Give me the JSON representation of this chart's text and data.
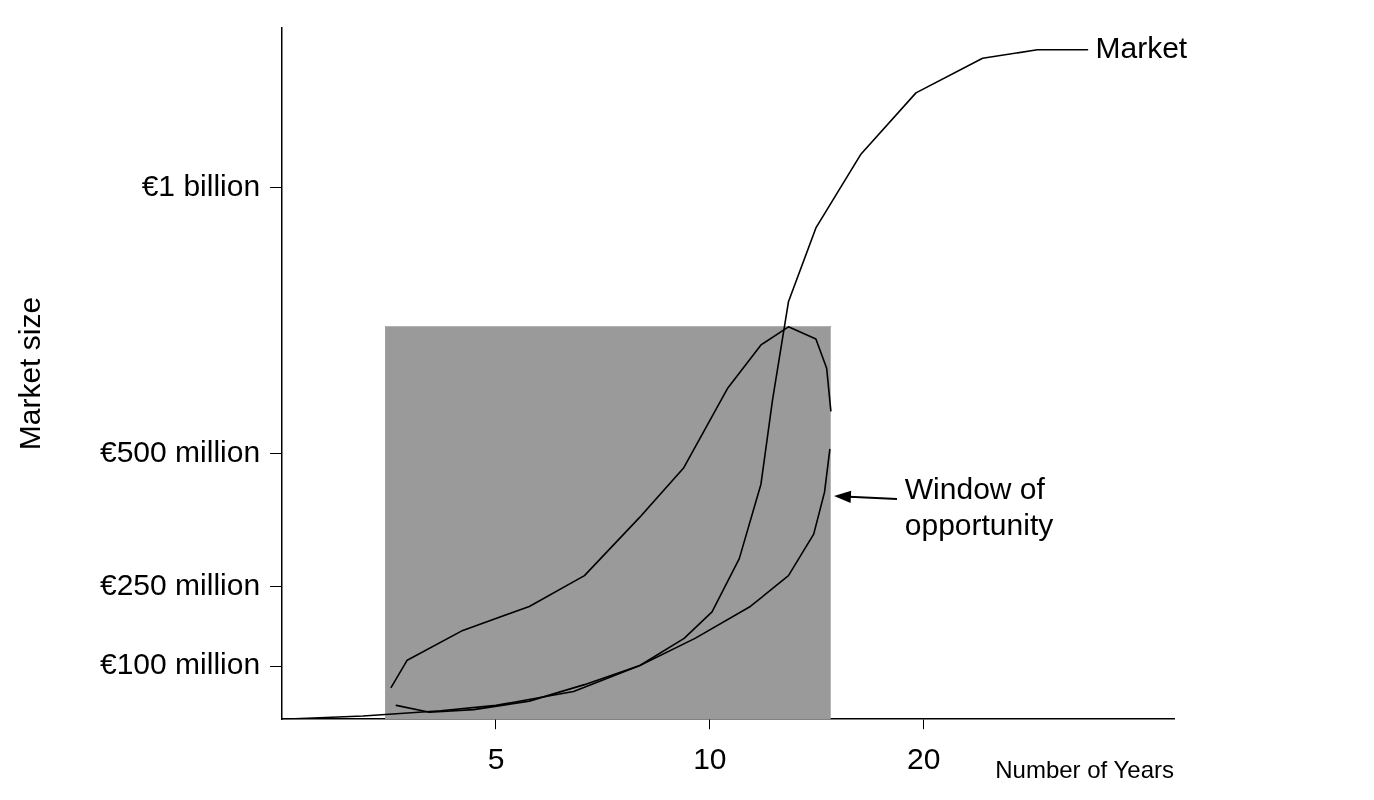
{
  "chart_data": {
    "type": "line",
    "xlabel": "Number of Years",
    "ylabel": "Market size",
    "log": "x",
    "xlim": [
      2.5,
      45
    ],
    "xticks": [
      5,
      10,
      20
    ],
    "ylim": [
      0,
      1300000000
    ],
    "yticks": [
      {
        "value": 100000000,
        "label": "€100 million"
      },
      {
        "value": 250000000,
        "label": "€250 million"
      },
      {
        "value": 500000000,
        "label": "€500 million"
      },
      {
        "value": 1000000000,
        "label": "€1 billion"
      }
    ],
    "grid": false,
    "legend": false,
    "marker": "none",
    "annotations": [
      {
        "text": "Window of opportunity",
        "x": 14.75,
        "y": 420000000
      }
    ],
    "series": [
      {
        "type": "area",
        "color": "#9a9a9a",
        "x": [
          3.49,
          14.8
        ],
        "values": [
          738000000,
          738000000
        ]
      },
      {
        "name": "Market",
        "color": "#000000",
        "x": [
          2.5,
          3.25,
          4.18,
          5,
          6.43,
          7.97,
          9.2,
          10.07,
          11.0,
          11.8,
          12.25,
          12.9,
          14.1,
          16.3,
          19.5,
          24.2,
          28.9,
          34
        ],
        "values": [
          0,
          6000000,
          16000000,
          26000000,
          52000000,
          101000000,
          152000000,
          202000000,
          302000000,
          442000000,
          600000000,
          785000000,
          924000000,
          1062000000,
          1178000000,
          1243000000,
          1259000000,
          1259000000
        ]
      },
      {
        "color": "#000000",
        "x": [
          3.56,
          3.75,
          4.49,
          5.57,
          6.66,
          7.97,
          9.19,
          10.6,
          11.8,
          12.9,
          14.1,
          14.6,
          14.8
        ],
        "values": [
          60000000,
          111000000,
          167000000,
          212000000,
          270000000,
          380000000,
          473000000,
          623000000,
          704000000,
          738000000,
          715000000,
          660000000,
          580000000
        ]
      },
      {
        "color": "#000000",
        "x": [
          3.62,
          4.03,
          4.65,
          5.57,
          6.66,
          7.97,
          9.53,
          11.4,
          12.9,
          14.0,
          14.5,
          14.75
        ],
        "values": [
          26000000,
          13000000,
          18000000,
          34000000,
          65000000,
          101000000,
          152000000,
          212000000,
          270000000,
          348000000,
          427000000,
          507000000
        ]
      }
    ]
  }
}
